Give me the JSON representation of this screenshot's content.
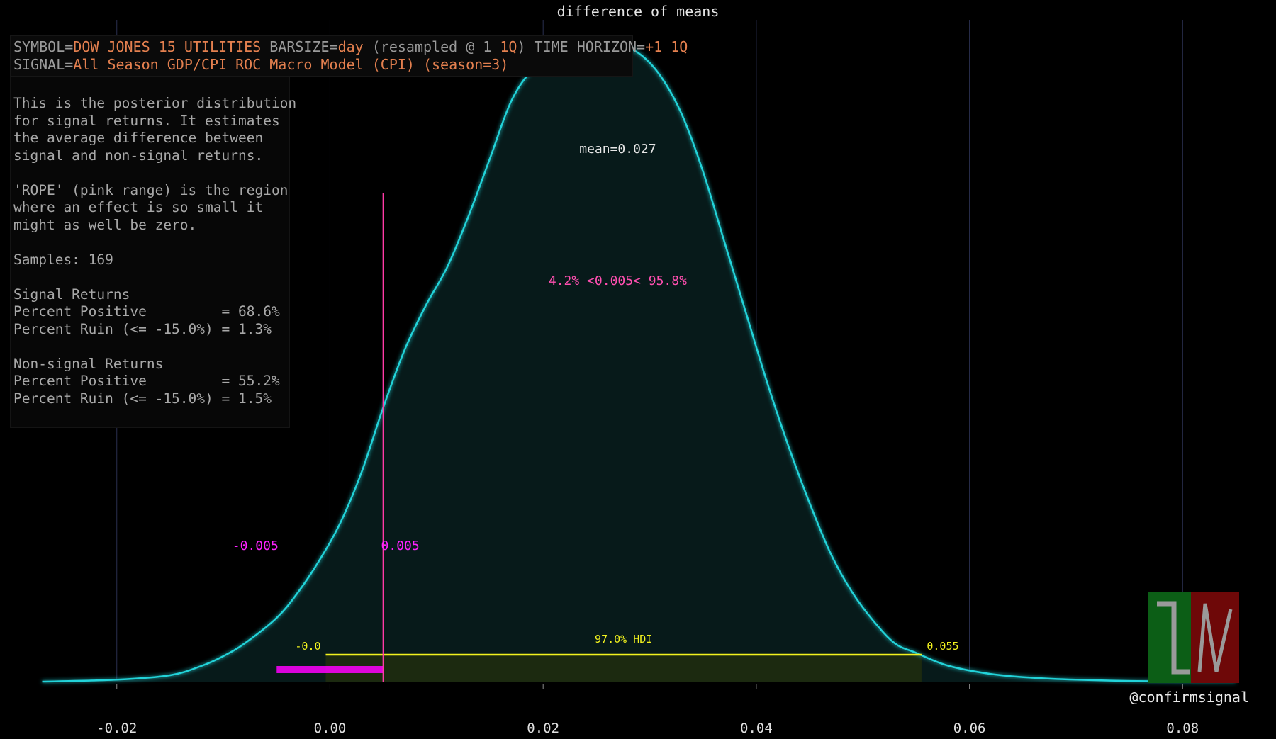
{
  "info": {
    "symbol_key": "SYMBOL=",
    "symbol_value": "DOW JONES 15 UTILITIES",
    "barsize_key": " BARSIZE=",
    "barsize_value": "day",
    "resampled_key": " (resampled @ 1 ",
    "resampled_value": "1Q",
    "horizon_key": ") TIME HORIZON=",
    "horizon_value": "+1 1Q",
    "signal_key": "SIGNAL=",
    "signal_value": "All Season GDP/CPI ROC Macro Model (CPI) (season=3)"
  },
  "description": "This is the posterior distribution\nfor signal returns. It estimates\nthe average difference between\nsignal and non-signal returns.\n\n'ROPE' (pink range) is the region\nwhere an effect is so small it\nmight as well be zero.\n\nSamples: 169\n\nSignal Returns\nPercent Positive         = 68.6%\nPercent Ruin (<= -15.0%) = 1.3%\n\nNon-signal Returns\nPercent Positive         = 55.2%\nPercent Ruin (<= -15.0%) = 1.5%",
  "footer": "@confirmsignal",
  "colors": {
    "background": "#000000",
    "curve": "#22d3d9",
    "fill": "#071a1a",
    "rope": "#ff00ff",
    "rope_line": "#ff3aa6",
    "hdi": "#f2f21e",
    "grid": "#2a3050",
    "text": "#e6e6e6",
    "logo_green": "#0c5e16",
    "logo_red": "#6e0808"
  },
  "chart_data": {
    "type": "area",
    "title": "difference of means",
    "xlabel": "",
    "ylabel": "",
    "xlim": [
      -0.0275,
      0.0855
    ],
    "ylim": [
      0,
      1.0
    ],
    "xticks": [
      -0.02,
      0.0,
      0.02,
      0.04,
      0.06,
      0.08
    ],
    "xtick_labels": [
      "-0.02",
      "0.00",
      "0.02",
      "0.04",
      "0.06",
      "0.08"
    ],
    "grid": "vertical",
    "x": [
      -0.027,
      -0.02,
      -0.015,
      -0.012,
      -0.01,
      -0.008,
      -0.005,
      -0.003,
      -0.001,
      0.001,
      0.003,
      0.005,
      0.007,
      0.009,
      0.011,
      0.013,
      0.015,
      0.017,
      0.019,
      0.021,
      0.023,
      0.025,
      0.027,
      0.029,
      0.031,
      0.033,
      0.035,
      0.037,
      0.039,
      0.041,
      0.043,
      0.045,
      0.047,
      0.049,
      0.051,
      0.053,
      0.055,
      0.058,
      0.062,
      0.066,
      0.07,
      0.075,
      0.08,
      0.085
    ],
    "density": [
      0.0,
      0.003,
      0.01,
      0.025,
      0.04,
      0.06,
      0.1,
      0.14,
      0.19,
      0.25,
      0.33,
      0.43,
      0.52,
      0.59,
      0.65,
      0.73,
      0.82,
      0.91,
      0.96,
      0.985,
      0.995,
      1.0,
      0.998,
      0.985,
      0.95,
      0.89,
      0.8,
      0.69,
      0.58,
      0.47,
      0.37,
      0.28,
      0.2,
      0.14,
      0.095,
      0.06,
      0.045,
      0.025,
      0.012,
      0.006,
      0.003,
      0.001,
      0.0,
      0.0
    ],
    "mean": 0.027,
    "mean_label": "mean=0.027",
    "reference_value": 0.005,
    "reference_label": "4.2% <0.005< 95.8%",
    "rope": [
      -0.005,
      0.005
    ],
    "rope_labels": [
      "-0.005",
      "0.005"
    ],
    "hdi": [
      -0.0004,
      0.0555
    ],
    "hdi_label": "97.0% HDI",
    "hdi_low_label": "-0.0",
    "hdi_high_label": "0.055"
  }
}
